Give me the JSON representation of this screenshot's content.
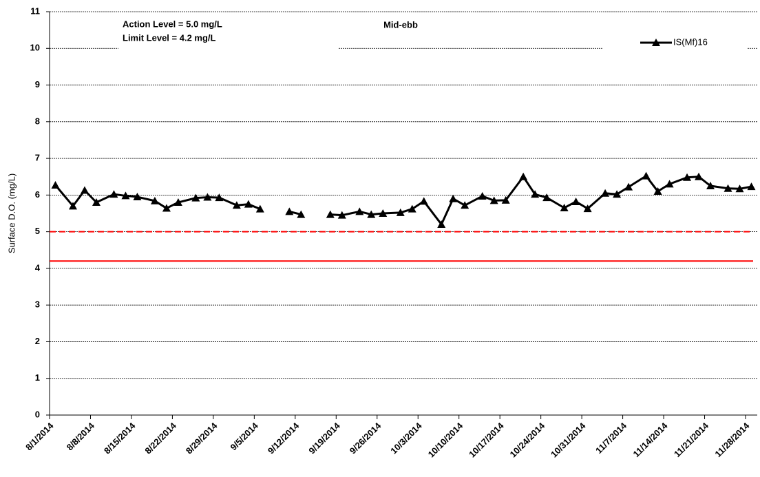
{
  "chart_data": {
    "type": "line",
    "title": "Mid-ebb",
    "ylabel": "Surface D.O. (mg/L)",
    "annotations": [
      "Action Level = 5.0 mg/L",
      "Limit Level = 4.2 mg/L"
    ],
    "reference_lines": [
      {
        "value": 5.0,
        "color": "#ff0000",
        "style": "dashed"
      },
      {
        "value": 4.2,
        "color": "#ff0000",
        "style": "solid"
      }
    ],
    "x": [
      "8/2/2014",
      "8/5/2014",
      "8/7/2014",
      "8/9/2014",
      "8/12/2014",
      "8/14/2014",
      "8/16/2014",
      "8/19/2014",
      "8/21/2014",
      "8/23/2014",
      "8/26/2014",
      "8/28/2014",
      "8/30/2014",
      "9/2/2014",
      "9/4/2014",
      "9/6/2014",
      "9/8/2014",
      "9/11/2014",
      "9/13/2014",
      "9/15/2014",
      "9/18/2014",
      "9/20/2014",
      "9/23/2014",
      "9/25/2014",
      "9/27/2014",
      "9/30/2014",
      "10/2/2014",
      "10/4/2014",
      "10/7/2014",
      "10/9/2014",
      "10/11/2014",
      "10/14/2014",
      "10/16/2014",
      "10/18/2014",
      "10/21/2014",
      "10/23/2014",
      "10/25/2014",
      "10/28/2014",
      "10/30/2014",
      "11/1/2014",
      "11/4/2014",
      "11/6/2014",
      "11/8/2014",
      "11/11/2014",
      "11/13/2014",
      "11/15/2014",
      "11/18/2014",
      "11/20/2014",
      "11/22/2014",
      "11/25/2014",
      "11/27/2014",
      "11/29/2014"
    ],
    "series": [
      {
        "name": "IS(Mf)16",
        "color": "#000000",
        "values": [
          6.27,
          5.7,
          6.13,
          5.8,
          6.02,
          5.98,
          5.95,
          5.84,
          5.64,
          5.8,
          5.92,
          5.94,
          5.93,
          5.72,
          5.75,
          5.62,
          null,
          5.55,
          5.47,
          null,
          5.47,
          5.45,
          5.55,
          5.47,
          5.5,
          5.52,
          5.62,
          5.83,
          5.2,
          5.9,
          5.72,
          5.97,
          5.85,
          5.86,
          6.5,
          6.02,
          5.93,
          5.65,
          5.82,
          5.63,
          6.05,
          6.02,
          6.22,
          6.52,
          6.1,
          6.3,
          6.48,
          6.5,
          6.25,
          6.18,
          6.17,
          6.23
        ]
      }
    ],
    "xlim": [
      "8/1/2014",
      "11/30/2014"
    ],
    "xticks": [
      "8/1/2014",
      "8/8/2014",
      "8/15/2014",
      "8/22/2014",
      "8/29/2014",
      "9/5/2014",
      "9/12/2014",
      "9/19/2014",
      "9/26/2014",
      "10/3/2014",
      "10/10/2014",
      "10/17/2014",
      "10/24/2014",
      "10/31/2014",
      "11/7/2014",
      "11/14/2014",
      "11/21/2014",
      "11/28/2014"
    ],
    "ylim": [
      0,
      11
    ],
    "yticks": [
      0,
      1,
      2,
      3,
      4,
      5,
      6,
      7,
      8,
      9,
      10,
      11
    ],
    "grid": true,
    "legend": "top-right"
  }
}
